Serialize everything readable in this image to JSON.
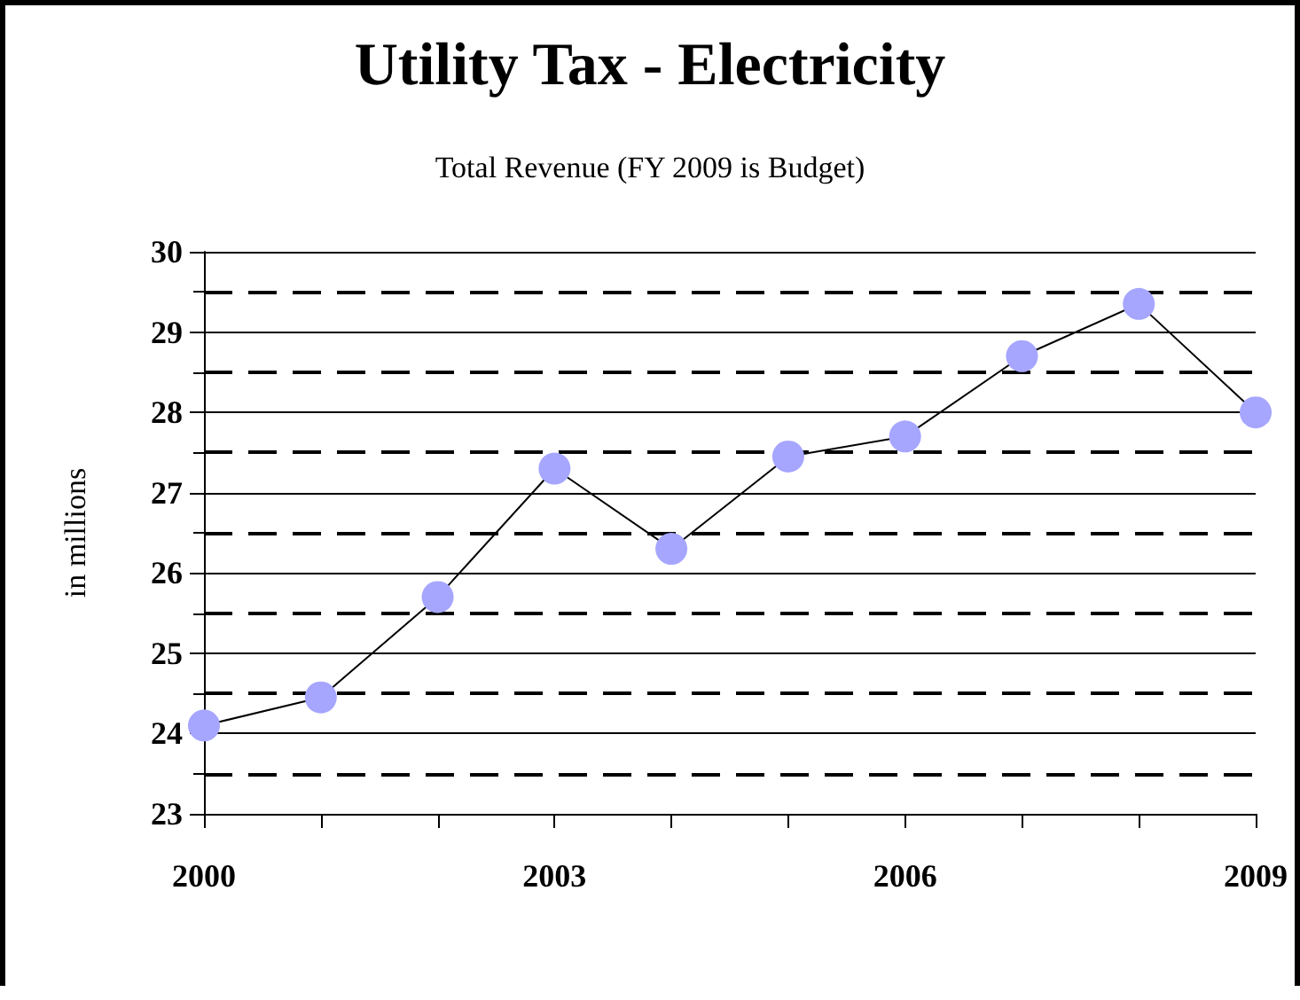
{
  "chart_data": {
    "type": "line",
    "title": "Utility Tax - Electricity",
    "subtitle": "Total Revenue (FY 2009 is Budget)",
    "ylabel": "in millions",
    "x": [
      2000,
      2001,
      2002,
      2003,
      2004,
      2005,
      2006,
      2007,
      2008,
      2009
    ],
    "series": [
      {
        "color": "#a6a6ff",
        "values": [
          24.1,
          24.45,
          25.7,
          27.3,
          26.3,
          27.45,
          27.7,
          28.7,
          29.35,
          28.0
        ]
      }
    ],
    "xlim": [
      2000,
      2009
    ],
    "xticks": [
      2000,
      {
        "value": 2001,
        "label": null
      },
      {
        "value": 2002,
        "label": null
      },
      2003,
      {
        "value": 2004,
        "label": null
      },
      {
        "value": 2005,
        "label": null
      },
      2006,
      {
        "value": 2007,
        "label": null
      },
      {
        "value": 2008,
        "label": null
      },
      2009
    ],
    "ylim": [
      23,
      30
    ],
    "yticks": [
      23,
      {
        "value": 23.5,
        "label": null
      },
      24,
      {
        "value": 24.5,
        "label": null
      },
      25,
      {
        "value": 25.5,
        "label": null
      },
      26,
      {
        "value": 26.5,
        "label": null
      },
      27,
      {
        "value": 27.5,
        "label": null
      },
      28,
      {
        "value": 28.5,
        "label": null
      },
      29,
      {
        "value": 29.5,
        "label": null
      },
      30
    ],
    "grid": "y",
    "marker": "circle",
    "line_style": "solid"
  }
}
